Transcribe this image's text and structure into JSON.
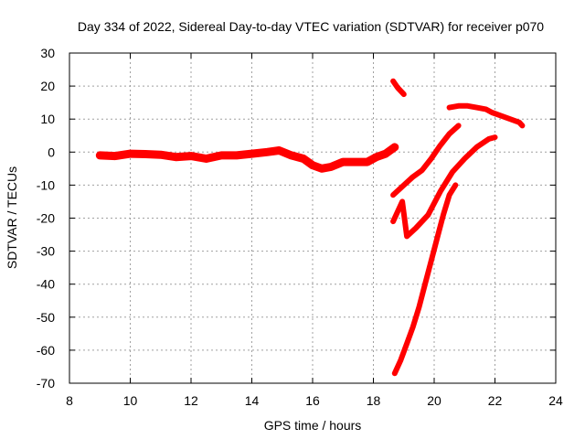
{
  "chart_data": {
    "type": "line",
    "title": "Day 334 of 2022, Sidereal Day-to-day VTEC variation (SDTVAR) for receiver p070",
    "xlabel": "GPS time / hours",
    "ylabel": "SDTVAR / TECUs",
    "xlim": [
      8,
      24
    ],
    "ylim": [
      -70,
      30
    ],
    "xticks": [
      8,
      10,
      12,
      14,
      16,
      18,
      20,
      22,
      24
    ],
    "yticks": [
      -70,
      -60,
      -50,
      -40,
      -30,
      -20,
      -10,
      0,
      10,
      20,
      30
    ],
    "grid": true,
    "color": "#ff0000",
    "series": [
      {
        "x": [
          9.0,
          9.5,
          10.0,
          10.5,
          11.0,
          11.5,
          12.0,
          12.5,
          13.0,
          13.5,
          14.0,
          14.5,
          14.9,
          15.3,
          15.7,
          16.0,
          16.3,
          16.6,
          17.0,
          17.4,
          17.8,
          18.1,
          18.4,
          18.7
        ],
        "y": [
          -1.0,
          -1.2,
          -0.5,
          -0.6,
          -0.8,
          -1.5,
          -1.2,
          -2.0,
          -1.0,
          -1.0,
          -0.5,
          0.0,
          0.5,
          -1.0,
          -2.0,
          -4.0,
          -5.0,
          -4.5,
          -3.0,
          -3.0,
          -3.0,
          -1.5,
          -0.5,
          1.5
        ]
      },
      {
        "x": [
          18.65,
          18.8,
          19.0
        ],
        "y": [
          21.5,
          19.5,
          17.5
        ]
      },
      {
        "x": [
          18.65,
          19.0,
          19.3,
          19.6,
          19.9,
          20.2,
          20.5,
          20.8
        ],
        "y": [
          -13,
          -10,
          -7.5,
          -5.5,
          -2.0,
          2.0,
          5.5,
          8.0
        ]
      },
      {
        "x": [
          18.65,
          18.8,
          18.95,
          19.1,
          19.4,
          19.8,
          20.2,
          20.6,
          21.0,
          21.4,
          21.8,
          22.0
        ],
        "y": [
          -21,
          -18,
          -15,
          -25.5,
          -23,
          -19,
          -12,
          -6,
          -2,
          1.5,
          4,
          4.5
        ]
      },
      {
        "x": [
          18.7,
          18.9,
          19.1,
          19.3,
          19.5,
          19.7,
          19.9,
          20.1,
          20.3,
          20.5,
          20.7
        ],
        "y": [
          -67,
          -63,
          -58,
          -53,
          -47,
          -40,
          -33,
          -26,
          -19,
          -13,
          -10
        ]
      },
      {
        "x": [
          20.5,
          20.8,
          21.1,
          21.4,
          21.7,
          21.9,
          22.2,
          22.5,
          22.8,
          22.9
        ],
        "y": [
          13.5,
          14,
          14,
          13.5,
          13,
          12,
          11,
          10,
          9,
          8
        ]
      }
    ]
  }
}
